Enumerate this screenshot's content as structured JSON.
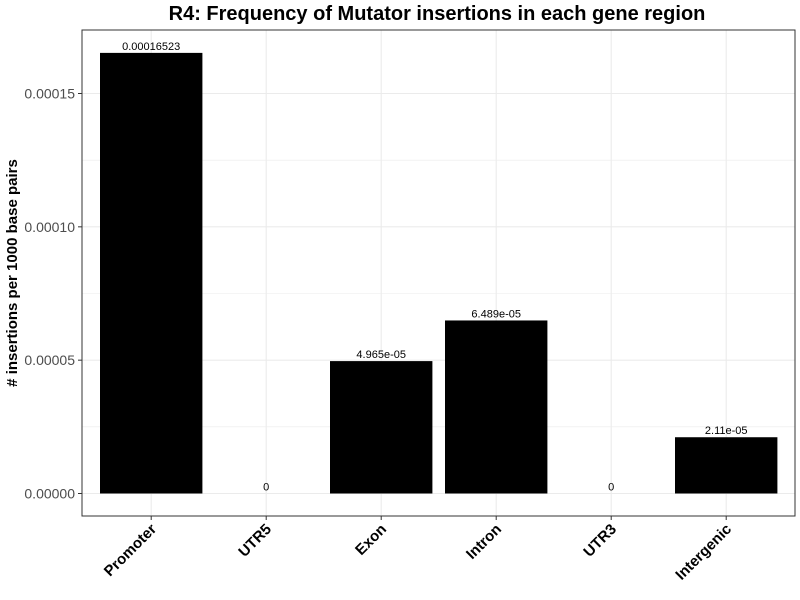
{
  "chart_data": {
    "type": "bar",
    "title": "R4: Frequency of Mutator insertions in each gene region",
    "xlabel": "",
    "ylabel": "# insertions per 1000 base pairs",
    "categories": [
      "Promoter",
      "UTR5",
      "Exon",
      "Intron",
      "UTR3",
      "Intergenic"
    ],
    "values": [
      0.00016523,
      0,
      4.965e-05,
      6.489e-05,
      0,
      2.11e-05
    ],
    "data_labels": [
      "0.00016523",
      "0",
      "4.965e-05",
      "6.489e-05",
      "0",
      "2.11e-05"
    ],
    "yticks": [
      0,
      5e-05,
      0.0001,
      0.00015
    ],
    "ytick_labels": [
      "0.00000",
      "0.00005",
      "0.00010",
      "0.00015"
    ],
    "ylim": [
      -8.3e-06,
      0.0001735
    ],
    "grid": true,
    "bar_color": "#000000",
    "grid_color": "#ebebeb",
    "panel_border_color": "#333333"
  }
}
